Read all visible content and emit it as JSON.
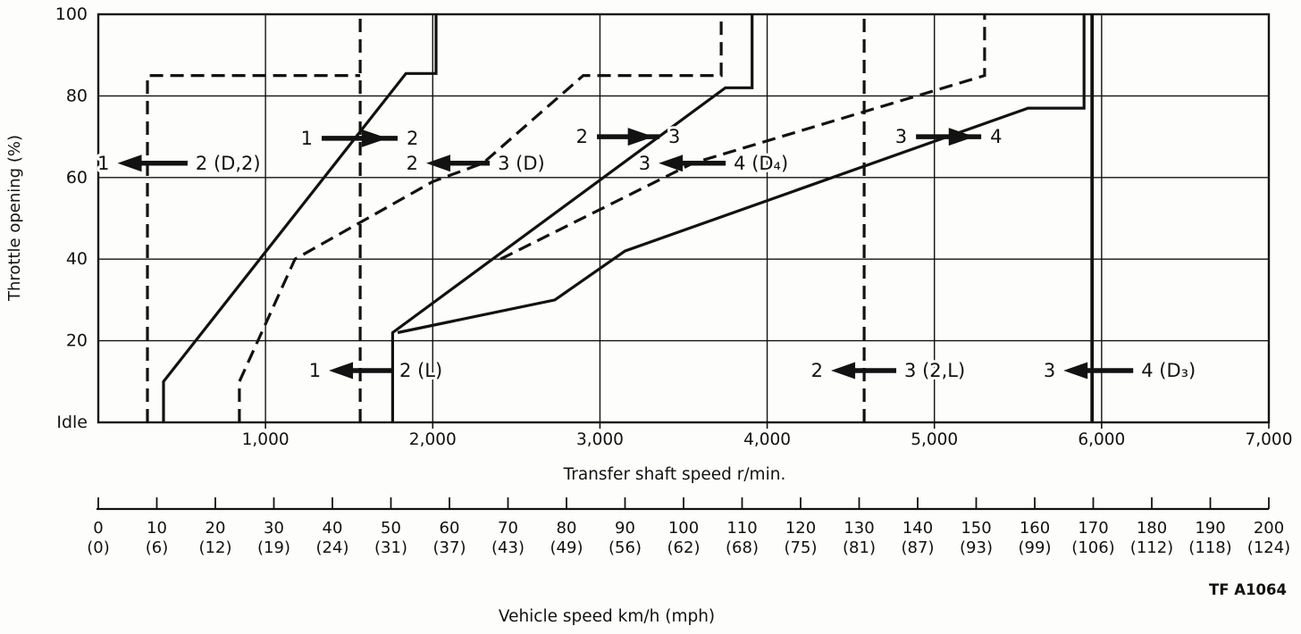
{
  "figure_code": "TF A1064",
  "colors": {
    "ink": "#121212",
    "paper": "#fdfdfb"
  },
  "chart_data": {
    "type": "line",
    "description": "Automatic transmission shift schedule: throttle opening vs transfer shaft speed",
    "grid": true,
    "x_axis": {
      "label": "Transfer shaft speed r/min.",
      "range": [
        0,
        7000
      ],
      "ticks": [
        {
          "value": 1000,
          "label": "1,000"
        },
        {
          "value": 2000,
          "label": "2,000"
        },
        {
          "value": 3000,
          "label": "3,000"
        },
        {
          "value": 4000,
          "label": "4,000"
        },
        {
          "value": 5000,
          "label": "5,000"
        },
        {
          "value": 6000,
          "label": "6,000"
        },
        {
          "value": 7000,
          "label": "7,000"
        }
      ]
    },
    "y_axis": {
      "label": "Throttle opening (%)",
      "range": [
        0,
        100
      ],
      "ticks": [
        {
          "value": 0,
          "label": "Idle"
        },
        {
          "value": 20,
          "label": "20"
        },
        {
          "value": 40,
          "label": "40"
        },
        {
          "value": 60,
          "label": "60"
        },
        {
          "value": 80,
          "label": "80"
        },
        {
          "value": 100,
          "label": "100"
        }
      ]
    },
    "speed_axis": {
      "label": "Vehicle speed km/h (mph)",
      "range": [
        0,
        200
      ],
      "step": 10,
      "kmh_labels": [
        "0",
        "10",
        "20",
        "30",
        "40",
        "50",
        "60",
        "70",
        "80",
        "90",
        "100",
        "110",
        "120",
        "130",
        "140",
        "150",
        "160",
        "170",
        "180",
        "190",
        "200"
      ],
      "mph_labels": [
        "(0)",
        "(6)",
        "(12)",
        "(19)",
        "(24)",
        "(31)",
        "(37)",
        "(43)",
        "(49)",
        "(56)",
        "(62)",
        "(68)",
        "(75)",
        "(81)",
        "(87)",
        "(93)",
        "(99)",
        "(106)",
        "(112)",
        "(118)",
        "(124)"
      ]
    },
    "series": [
      {
        "id": "upshift-1-2",
        "name": "1-2 upshift",
        "style": "solid",
        "points": [
          [
            390,
            0
          ],
          [
            390,
            10
          ],
          [
            1840,
            85.5
          ],
          [
            2020,
            85.5
          ],
          [
            2020,
            100
          ]
        ]
      },
      {
        "id": "upshift-2-3",
        "name": "2-3 upshift",
        "style": "solid",
        "points": [
          [
            1760,
            0
          ],
          [
            1760,
            22
          ],
          [
            3750,
            82
          ],
          [
            3910,
            82
          ],
          [
            3910,
            100
          ]
        ]
      },
      {
        "id": "upshift-3-4",
        "name": "3-4 upshift",
        "style": "solid",
        "points": [
          [
            1790,
            22
          ],
          [
            2730,
            30
          ],
          [
            3150,
            42
          ],
          [
            5560,
            77
          ],
          [
            5895,
            77
          ],
          [
            5895,
            100
          ]
        ]
      },
      {
        "id": "downshift-2-1-d2",
        "name": "2-1 downshift (D,2)",
        "style": "dashed",
        "points": [
          [
            294,
            0
          ],
          [
            294,
            85
          ],
          [
            1566,
            85
          ]
        ]
      },
      {
        "id": "downshift-2-1-l",
        "name": "2-1 downshift (L)",
        "style": "dashed",
        "points": [
          [
            1566,
            0
          ],
          [
            1566,
            100
          ]
        ]
      },
      {
        "id": "downshift-3-2-d",
        "name": "3-2 downshift (D)",
        "style": "dashed",
        "points": [
          [
            844,
            0
          ],
          [
            844,
            10
          ],
          [
            1176,
            40
          ],
          [
            2000,
            59
          ],
          [
            2300,
            63.5
          ],
          [
            2900,
            85
          ],
          [
            3725,
            85
          ],
          [
            3725,
            100
          ]
        ]
      },
      {
        "id": "downshift-4-3-d4",
        "name": "4-3 downshift (D4)",
        "style": "dashed",
        "points": [
          [
            2405,
            40
          ],
          [
            3555,
            63.5
          ],
          [
            5300,
            85
          ],
          [
            5300,
            100
          ]
        ]
      },
      {
        "id": "downshift-3-2-2l",
        "name": "3-2 downshift (2,L)",
        "style": "dashed",
        "points": [
          [
            4580,
            0
          ],
          [
            4580,
            100
          ]
        ]
      },
      {
        "id": "downshift-4-3-d3",
        "name": "4-3 downshift (D3)",
        "style": "solid-thick",
        "points": [
          [
            5943,
            0
          ],
          [
            5943,
            100
          ]
        ]
      }
    ],
    "shift_labels": [
      {
        "id": "label-1-2-down-d2",
        "left": "1",
        "right": "2 (D,2)",
        "dir": "left",
        "throttle": 63.5,
        "tip_rpm": 115,
        "tail_rpm": 534
      },
      {
        "id": "label-1-2-up",
        "left": "1",
        "right": "2",
        "dir": "right",
        "throttle": 69.6,
        "tip_rpm": 1790,
        "tail_rpm": 1336
      },
      {
        "id": "label-2-3-down-d",
        "left": "2",
        "right": "3 (D)",
        "dir": "left",
        "throttle": 63.5,
        "tip_rpm": 1961,
        "tail_rpm": 2341
      },
      {
        "id": "label-2-3-up",
        "left": "2",
        "right": "3",
        "dir": "right",
        "throttle": 70,
        "tip_rpm": 3356,
        "tail_rpm": 2982
      },
      {
        "id": "label-3-4-down-d4",
        "left": "3",
        "right": "4 (D₄)",
        "dir": "left",
        "throttle": 63.5,
        "tip_rpm": 3351,
        "tail_rpm": 3752
      },
      {
        "id": "label-3-4-up",
        "left": "3",
        "right": "4",
        "dir": "right",
        "throttle": 70,
        "tip_rpm": 5280,
        "tail_rpm": 4890
      },
      {
        "id": "label-1-2-down-l",
        "left": "1",
        "right": "2 (L)",
        "dir": "left",
        "throttle": 12.7,
        "tip_rpm": 1379,
        "tail_rpm": 1753
      },
      {
        "id": "label-2-3-down-2l",
        "left": "2",
        "right": "3 (2,L)",
        "dir": "left",
        "throttle": 12.7,
        "tip_rpm": 4382,
        "tail_rpm": 4772
      },
      {
        "id": "label-3-4-down-d3",
        "left": "3",
        "right": "4 (D₃)",
        "dir": "left",
        "throttle": 12.7,
        "tip_rpm": 5772,
        "tail_rpm": 6189
      }
    ]
  }
}
